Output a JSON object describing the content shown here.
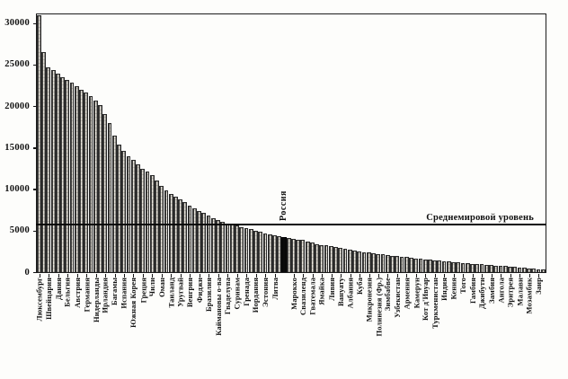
{
  "page": {
    "background": "#fdfdfb",
    "frame_color": "#1c1c1c"
  },
  "chart_data": {
    "type": "bar",
    "title": "",
    "xlabel": "",
    "ylabel": "",
    "ylim": [
      0,
      31050
    ],
    "yticks": [
      0,
      5000,
      10000,
      15000,
      20000,
      25000,
      30000
    ],
    "grid": false,
    "legend_position": "none",
    "bar_fill": "hatched-vertical",
    "frame": "full-box",
    "average_line": {
      "value": 5750,
      "label": "Среднемировой уровень"
    },
    "highlight": {
      "index": 52,
      "label": "Россия",
      "color": "#0a0a0a"
    },
    "bars_format": [
      "x_label",
      "value"
    ],
    "bars": [
      [
        "Люксембург",
        31000
      ],
      [
        "",
        26500
      ],
      [
        "Швейцария",
        24700
      ],
      [
        "",
        24300
      ],
      [
        "Дания",
        23900
      ],
      [
        "",
        23500
      ],
      [
        "Бельгия",
        23200
      ],
      [
        "",
        22800
      ],
      [
        "Австрия",
        22400
      ],
      [
        "",
        22000
      ],
      [
        "Германия",
        21600
      ],
      [
        "",
        21200
      ],
      [
        "Нидерланды",
        20700
      ],
      [
        "",
        20100
      ],
      [
        "Ирландия",
        19000
      ],
      [
        "",
        18000
      ],
      [
        "Багамы",
        16400
      ],
      [
        "",
        15400
      ],
      [
        "Испания",
        14600
      ],
      [
        "",
        14000
      ],
      [
        "Южная Корея",
        13500
      ],
      [
        "",
        13000
      ],
      [
        "Греция",
        12500
      ],
      [
        "",
        12100
      ],
      [
        "Чили",
        11700
      ],
      [
        "",
        11000
      ],
      [
        "Оман",
        10400
      ],
      [
        "",
        9900
      ],
      [
        "Таиланд",
        9400
      ],
      [
        "",
        9100
      ],
      [
        "Уругвай",
        8800
      ],
      [
        "",
        8400
      ],
      [
        "Венгрия",
        8000
      ],
      [
        "",
        7700
      ],
      [
        "Фиджи",
        7400
      ],
      [
        "",
        7100
      ],
      [
        "Бразилия",
        6800
      ],
      [
        "",
        6500
      ],
      [
        "Каймановы о-ва",
        6250
      ],
      [
        "",
        6050
      ],
      [
        "Гваделупа",
        5900
      ],
      [
        "",
        5750
      ],
      [
        "Суринам",
        5600
      ],
      [
        "",
        5450
      ],
      [
        "Гренада",
        5300
      ],
      [
        "",
        5150
      ],
      [
        "Иордания",
        5000
      ],
      [
        "",
        4850
      ],
      [
        "Эстония",
        4700
      ],
      [
        "",
        4550
      ],
      [
        "Литва",
        4450
      ],
      [
        "",
        4350
      ],
      [
        "",
        4250
      ],
      [
        "",
        4150
      ],
      [
        "Марокко",
        4050
      ],
      [
        "",
        3950
      ],
      [
        "Свазиленд",
        3850
      ],
      [
        "",
        3700
      ],
      [
        "Гватемала",
        3550
      ],
      [
        "",
        3400
      ],
      [
        "Ямайка",
        3300
      ],
      [
        "",
        3200
      ],
      [
        "Ливия",
        3100
      ],
      [
        "",
        3000
      ],
      [
        "Вануату",
        2900
      ],
      [
        "",
        2800
      ],
      [
        "Албания",
        2700
      ],
      [
        "",
        2600
      ],
      [
        "Куба",
        2500
      ],
      [
        "",
        2420
      ],
      [
        "Микронезия",
        2350
      ],
      [
        "",
        2270
      ],
      [
        "Полинезия (Фр.)",
        2200
      ],
      [
        "",
        2130
      ],
      [
        "Зимбабве",
        2060
      ],
      [
        "",
        2000
      ],
      [
        "Узбекистан",
        1930
      ],
      [
        "",
        1870
      ],
      [
        "Армения",
        1800
      ],
      [
        "",
        1740
      ],
      [
        "Камерун",
        1680
      ],
      [
        "",
        1620
      ],
      [
        "Кот д'Ивуар",
        1560
      ],
      [
        "",
        1500
      ],
      [
        "Туркменистан",
        1450
      ],
      [
        "",
        1400
      ],
      [
        "Индия",
        1350
      ],
      [
        "",
        1290
      ],
      [
        "Кения",
        1230
      ],
      [
        "",
        1180
      ],
      [
        "Того",
        1130
      ],
      [
        "",
        1080
      ],
      [
        "Гамбия",
        1030
      ],
      [
        "",
        980
      ],
      [
        "Джибути",
        930
      ],
      [
        "",
        890
      ],
      [
        "Замбия",
        850
      ],
      [
        "",
        800
      ],
      [
        "Ангола",
        760
      ],
      [
        "",
        720
      ],
      [
        "Эритрея",
        680
      ],
      [
        "",
        630
      ],
      [
        "Малави",
        580
      ],
      [
        "",
        530
      ],
      [
        "Мозамбик",
        480
      ],
      [
        "",
        430
      ],
      [
        "Заир",
        380
      ],
      [
        "",
        320
      ]
    ]
  }
}
